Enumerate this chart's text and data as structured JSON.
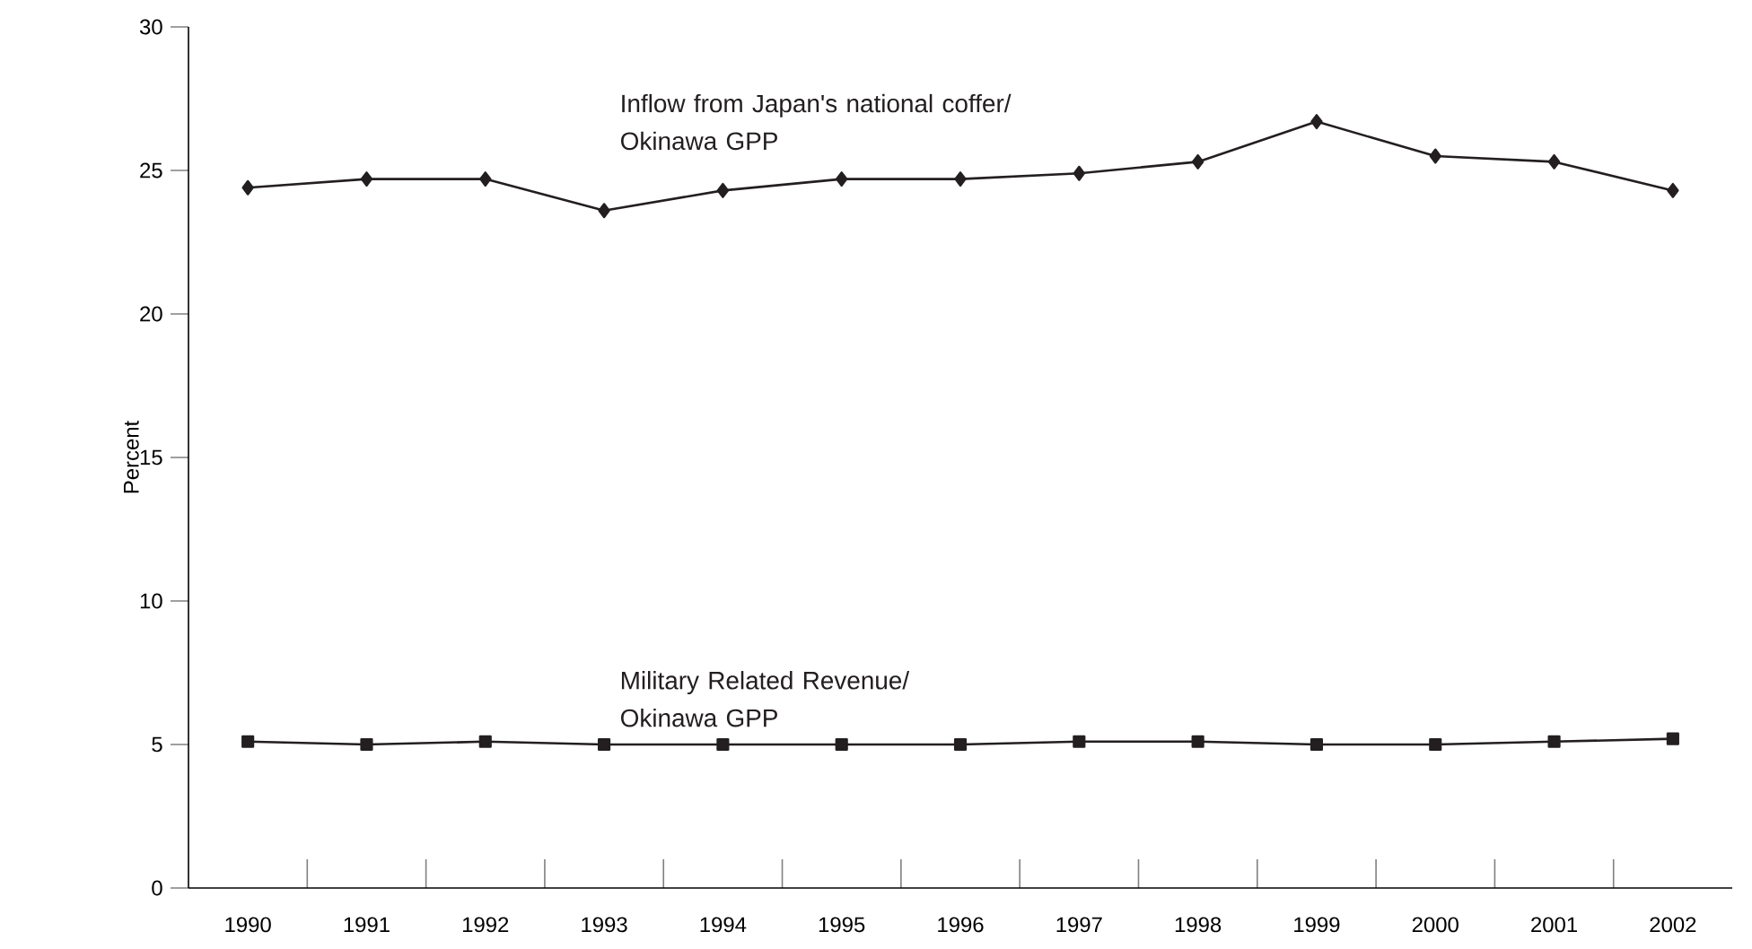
{
  "chart_data": {
    "type": "line",
    "ylabel": "Percent",
    "categories": [
      "1990",
      "1991",
      "1992",
      "1993",
      "1994",
      "1995",
      "1996",
      "1997",
      "1998",
      "1999",
      "2000",
      "2001",
      "2002"
    ],
    "series": [
      {
        "name": "Inflow from Japan's national coffer/ Okinawa GPP",
        "color": "#231f20",
        "marker": "diamond",
        "values": [
          24.4,
          24.7,
          24.7,
          23.6,
          24.3,
          24.7,
          24.7,
          24.9,
          25.3,
          26.7,
          25.5,
          25.3,
          24.3
        ]
      },
      {
        "name": "Military Related Revenue/ Okinawa GPP",
        "color": "#231f20",
        "marker": "square",
        "values": [
          5.1,
          5.0,
          5.1,
          5.0,
          5.0,
          5.0,
          5.0,
          5.1,
          5.1,
          5.0,
          5.0,
          5.1,
          5.2
        ]
      }
    ],
    "ylim": [
      0,
      30
    ],
    "yticks": [
      0,
      5,
      10,
      15,
      20,
      25,
      30
    ],
    "grid": false,
    "line_style": "solid"
  }
}
